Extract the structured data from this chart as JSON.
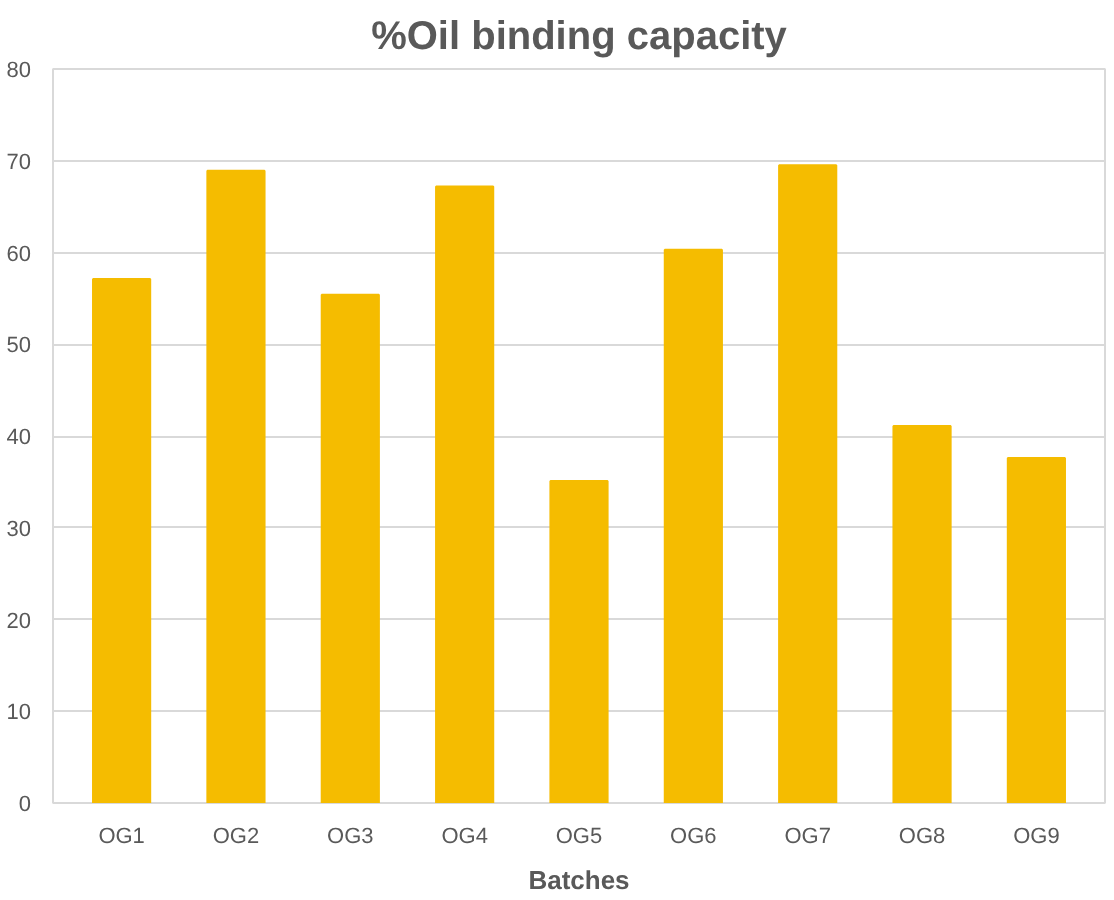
{
  "chart_data": {
    "type": "bar",
    "title": "%Oil binding capacity",
    "xlabel": "Batches",
    "categories": [
      "OG1",
      "OG2",
      "OG3",
      "OG4",
      "OG5",
      "OG6",
      "OG7",
      "OG8",
      "OG9"
    ],
    "values": [
      57.1,
      68.9,
      55.4,
      67.2,
      35.1,
      60.3,
      69.5,
      41.1,
      37.6
    ],
    "color": "#f5bc00",
    "ylim": [
      0,
      80
    ],
    "yticks": [
      0,
      10,
      20,
      30,
      40,
      50,
      60,
      70,
      80
    ],
    "grid": "y"
  }
}
